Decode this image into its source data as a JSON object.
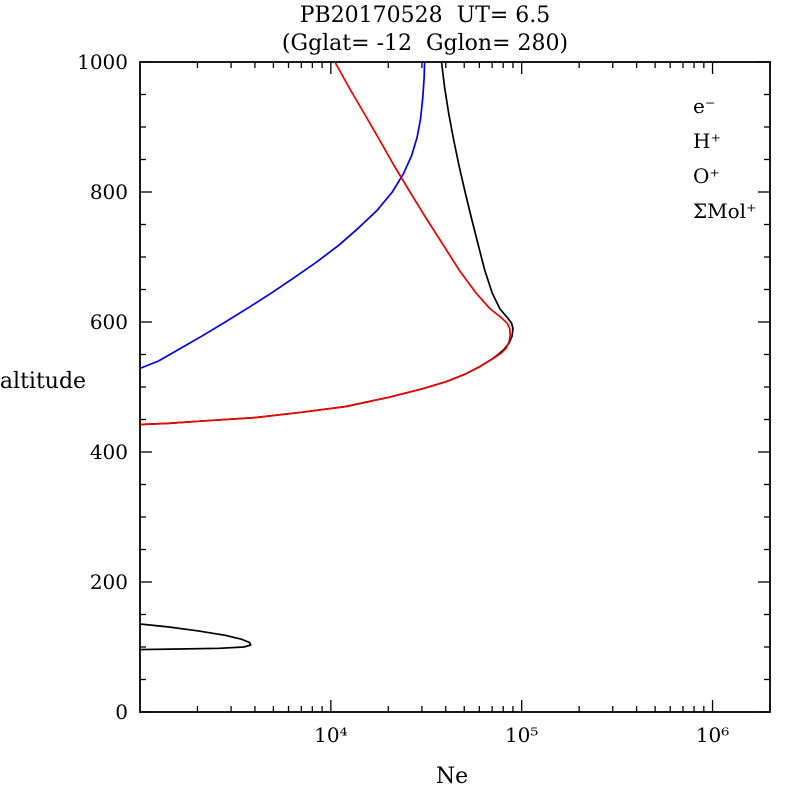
{
  "title": {
    "line1": "PB20170528  UT= 6.5",
    "line2": "(Gglat= -12  Gglon= 280)"
  },
  "axes": {
    "xlabel": "Ne",
    "ylabel": "altitude",
    "x_tick_labels": [
      "10⁴",
      "10⁵",
      "10⁶"
    ],
    "y_tick_labels": [
      "0",
      "200",
      "400",
      "600",
      "800",
      "1000"
    ]
  },
  "legend": {
    "position": "top-right",
    "items": [
      {
        "name": "e-",
        "label": "e⁻",
        "color": "#000000"
      },
      {
        "name": "H+",
        "label": "H⁺",
        "color": "#0000ee"
      },
      {
        "name": "O+",
        "label": "O⁺",
        "color": "#ee0000"
      },
      {
        "name": "Mol+",
        "label": "ΣMol⁺",
        "color": "#009900"
      }
    ]
  },
  "chart_data": {
    "type": "line",
    "title": "PB20170528 UT= 6.5 (Gglat= -12 Gglon= 280)",
    "xlabel": "Ne",
    "ylabel": "altitude",
    "x_scale": "log",
    "xlim": [
      1000,
      2000000
    ],
    "ylim": [
      0,
      1000
    ],
    "x_ticks": [
      10000,
      100000,
      1000000
    ],
    "y_ticks": [
      0,
      200,
      400,
      600,
      800,
      1000
    ],
    "grid": false,
    "legend_position": "top-right",
    "series": [
      {
        "name": "e-",
        "color": "#000000",
        "segments": [
          [
            [
              38000,
              1000
            ],
            [
              39500,
              960
            ],
            [
              41500,
              920
            ],
            [
              44000,
              880
            ],
            [
              47000,
              840
            ],
            [
              50500,
              800
            ],
            [
              54500,
              760
            ],
            [
              59000,
              720
            ],
            [
              64000,
              680
            ],
            [
              70000,
              645
            ],
            [
              77000,
              620
            ],
            [
              84000,
              607
            ],
            [
              88500,
              598
            ],
            [
              90000,
              590
            ],
            [
              89000,
              578
            ],
            [
              86000,
              568
            ],
            [
              81000,
              558
            ],
            [
              76000,
              551
            ],
            [
              70000,
              543
            ],
            [
              60000,
              531
            ],
            [
              50000,
              519
            ],
            [
              40000,
              508
            ],
            [
              30000,
              497
            ],
            [
              20000,
              484
            ],
            [
              12000,
              470
            ],
            [
              7000,
              461
            ],
            [
              4000,
              453
            ],
            [
              2200,
              448
            ],
            [
              1400,
              444
            ],
            [
              950,
              442
            ]
          ],
          [
            [
              950,
              136
            ],
            [
              1400,
              131
            ],
            [
              2000,
              125
            ],
            [
              2800,
              118
            ],
            [
              3400,
              112
            ],
            [
              3750,
              107
            ],
            [
              3800,
              103
            ],
            [
              3500,
              100
            ],
            [
              2600,
              98
            ],
            [
              1600,
              97
            ],
            [
              950,
              96
            ]
          ]
        ]
      },
      {
        "name": "H+",
        "color": "#0000ee",
        "segments": [
          [
            [
              950,
              526
            ],
            [
              1250,
              540
            ],
            [
              1600,
              558
            ],
            [
              2100,
              578
            ],
            [
              2800,
              600
            ],
            [
              3700,
              622
            ],
            [
              4900,
              645
            ],
            [
              6400,
              668
            ],
            [
              8400,
              692
            ],
            [
              11000,
              718
            ],
            [
              14000,
              745
            ],
            [
              17500,
              772
            ],
            [
              21000,
              800
            ],
            [
              24000,
              828
            ],
            [
              26500,
              856
            ],
            [
              28300,
              884
            ],
            [
              29500,
              912
            ],
            [
              30300,
              944
            ],
            [
              30800,
              975
            ],
            [
              31000,
              1000
            ]
          ]
        ]
      },
      {
        "name": "O+",
        "color": "#ee0000",
        "segments": [
          [
            [
              10500,
              1000
            ],
            [
              12500,
              960
            ],
            [
              15000,
              920
            ],
            [
              18000,
              880
            ],
            [
              21500,
              840
            ],
            [
              26000,
              800
            ],
            [
              31500,
              760
            ],
            [
              38500,
              720
            ],
            [
              47000,
              680
            ],
            [
              57500,
              645
            ],
            [
              68500,
              620
            ],
            [
              78000,
              607
            ],
            [
              84000,
              598
            ],
            [
              86500,
              590
            ],
            [
              87000,
              580
            ],
            [
              86000,
              570
            ],
            [
              83000,
              560
            ],
            [
              78000,
              552
            ],
            [
              71000,
              544
            ],
            [
              61000,
              532
            ],
            [
              50000,
              519
            ],
            [
              40000,
              508
            ],
            [
              30000,
              497
            ],
            [
              20000,
              484
            ],
            [
              12000,
              470
            ],
            [
              7000,
              461
            ],
            [
              4000,
              453
            ],
            [
              2200,
              448
            ],
            [
              1400,
              444
            ],
            [
              950,
              442
            ]
          ]
        ]
      },
      {
        "name": "Mol+",
        "color": "#009900",
        "segments": []
      }
    ]
  }
}
